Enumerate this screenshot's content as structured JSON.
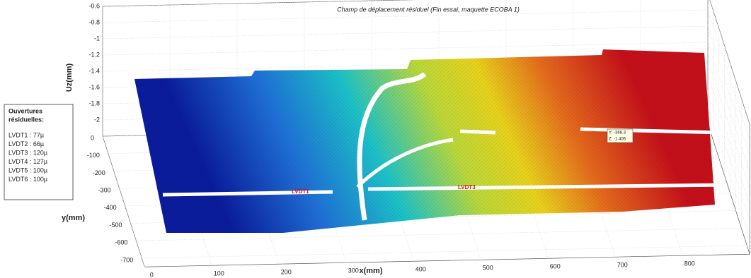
{
  "chart_data": {
    "type": "surface3d",
    "title": "Champ de déplacement résiduel (Fin essai, maquette ECOBA 1)",
    "x_label": "x(mm)",
    "y_label": "y(mm)",
    "z_label": "Uz(mm)",
    "xlim": [
      0,
      900
    ],
    "ylim": [
      -750,
      0
    ],
    "zlim": [
      -2.2,
      -0.6
    ],
    "xticks": [
      0,
      100,
      200,
      300,
      400,
      500,
      600,
      700,
      800
    ],
    "yticks": [
      0,
      -100,
      -200,
      -300,
      -400,
      -500,
      -600,
      -700
    ],
    "zticks": [
      -0.6,
      -0.8,
      -1,
      -1.2,
      -1.4,
      -1.6,
      -1.8,
      -2
    ],
    "grid": true,
    "legend_box": {
      "title": [
        "Ouvertures",
        "résiduelles:"
      ],
      "items": [
        "LVDT1 : 77µ",
        "LVDT2 : 66µ",
        "LVDT3 : 120µ",
        "LVDT4 : 127µ",
        "LVDT5 : 100µ",
        "LVDT6 : 100µ"
      ]
    },
    "annotations": [
      "LVDT1",
      "LVDT3"
    ],
    "datatip": [
      "Y: -368.3",
      "Z: -1.406"
    ]
  }
}
